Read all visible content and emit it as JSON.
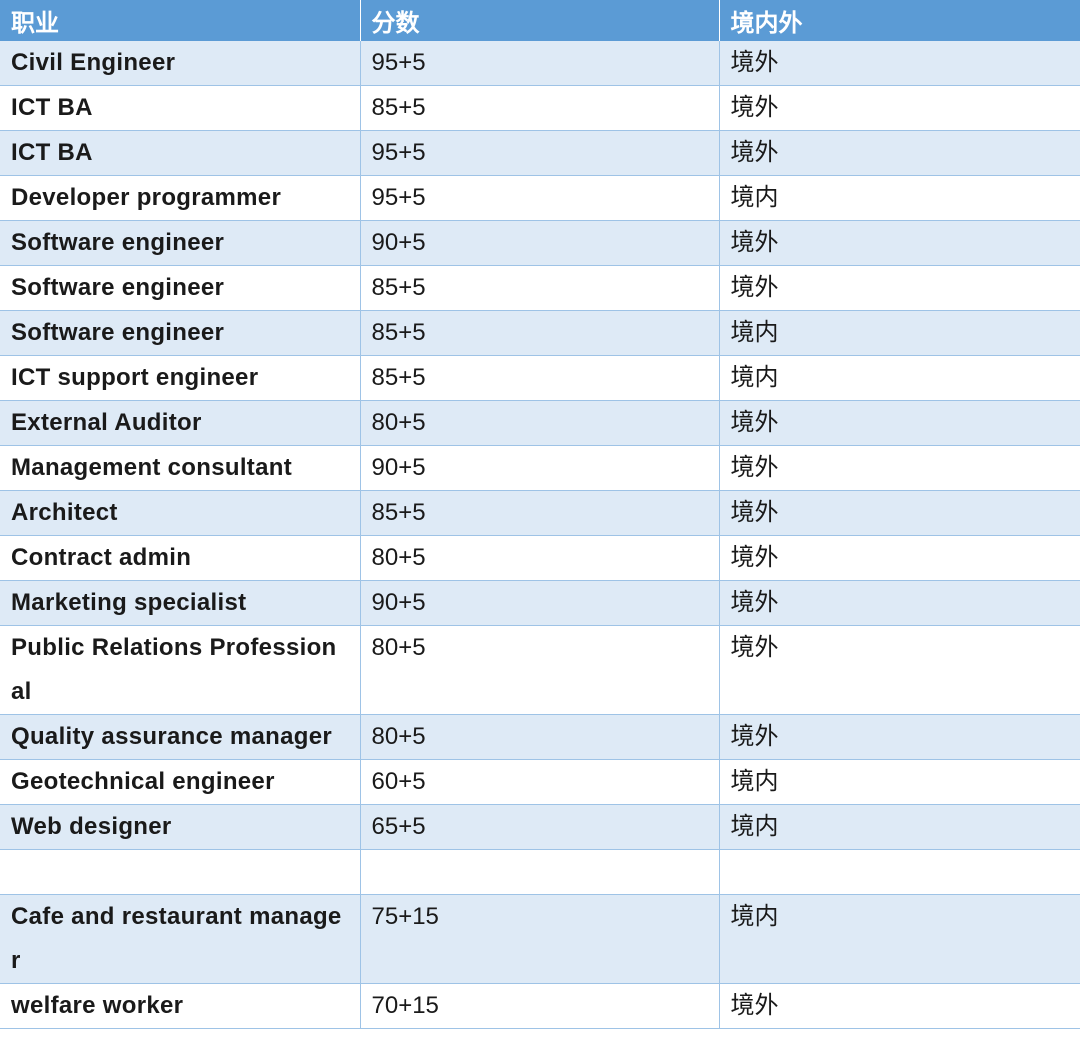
{
  "headers": [
    "职业",
    "分数",
    "境内外"
  ],
  "rows": [
    {
      "job": "Civil Engineer",
      "score": "95+5",
      "location": "境外"
    },
    {
      "job": "ICT BA",
      "score": "85+5",
      "location": "境外"
    },
    {
      "job": "ICT BA",
      "score": "95+5",
      "location": "境外"
    },
    {
      "job": "Developer programmer",
      "score": "95+5",
      "location": "境内"
    },
    {
      "job": "Software engineer",
      "score": "90+5",
      "location": "境外"
    },
    {
      "job": "Software engineer",
      "score": "85+5",
      "location": "境外"
    },
    {
      "job": "Software engineer",
      "score": "85+5",
      "location": "境内"
    },
    {
      "job": "ICT support engineer",
      "score": "85+5",
      "location": "境内"
    },
    {
      "job": "External Auditor",
      "score": "80+5",
      "location": "境外"
    },
    {
      "job": "Management consultant",
      "score": "90+5",
      "location": "境外"
    },
    {
      "job": "Architect",
      "score": "85+5",
      "location": "境外"
    },
    {
      "job": "Contract admin",
      "score": "80+5",
      "location": "境外"
    },
    {
      "job": "Marketing specialist",
      "score": "90+5",
      "location": "境外"
    },
    {
      "job": "Public Relations Professional",
      "score": "80+5",
      "location": "境外"
    },
    {
      "job": "Quality assurance manager",
      "score": "80+5",
      "location": "境外"
    },
    {
      "job": "Geotechnical engineer",
      "score": "60+5",
      "location": "境内"
    },
    {
      "job": "Web designer",
      "score": "65+5",
      "location": "境内"
    },
    {
      "job": "",
      "score": "",
      "location": ""
    },
    {
      "job": "Cafe and restaurant manager",
      "score": "75+15",
      "location": "境内"
    },
    {
      "job": "welfare worker",
      "score": "70+15",
      "location": "境外"
    }
  ],
  "colors": {
    "header_bg": "#5b9bd5",
    "stripe_bg": "#deeaf6",
    "grid_line": "#9ec3e6"
  }
}
